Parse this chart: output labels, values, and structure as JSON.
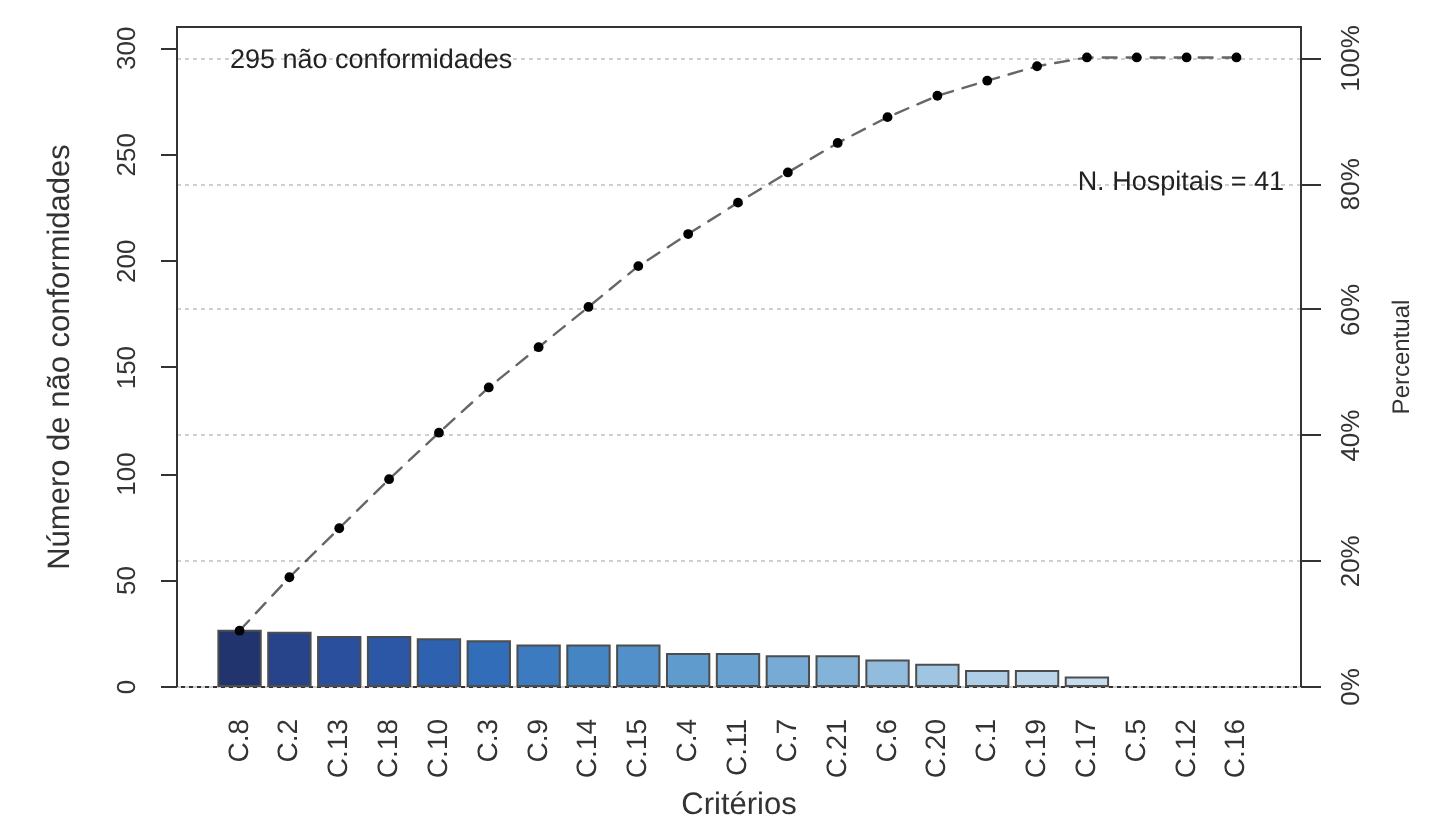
{
  "chart_data": {
    "type": "bar",
    "xlabel": "Critérios",
    "ylabel": "Número de não conformidades",
    "y2label": "Percentual",
    "categories": [
      "C.8",
      "C.2",
      "C.13",
      "C.18",
      "C.10",
      "C.3",
      "C.9",
      "C.14",
      "C.15",
      "C.4",
      "C.11",
      "C.7",
      "C.21",
      "C.6",
      "C.20",
      "C.1",
      "C.19",
      "C.17",
      "C.5",
      "C.12",
      "C.16"
    ],
    "series": [
      {
        "colors": [
          "#22346e",
          "#27438a",
          "#2a4f9c",
          "#2c57a6",
          "#2e62b0",
          "#316db8",
          "#3c7bbf",
          "#4585c4",
          "#5190c8",
          "#5f9bcd",
          "#6aa2d1",
          "#77abd5",
          "#84b3d9",
          "#92bcde",
          "#a0c5e2",
          "#aecde6",
          "#bad4ea",
          "#c7ddef",
          null,
          null,
          null
        ],
        "values": [
          26,
          25,
          23,
          23,
          22,
          21,
          19,
          19,
          19,
          15,
          15,
          14,
          14,
          12,
          10,
          7,
          7,
          4,
          0,
          0,
          0
        ]
      },
      {
        "type": "line",
        "axis": "y2",
        "color": "#000000",
        "values": [
          8.8,
          17.3,
          25.1,
          32.9,
          40.3,
          47.5,
          53.9,
          60.3,
          66.8,
          71.9,
          76.9,
          81.7,
          86.4,
          90.5,
          93.9,
          96.3,
          98.6,
          100,
          100,
          100,
          100
        ]
      }
    ],
    "ylim": [
      0,
      310
    ],
    "yticks": [
      0,
      50,
      100,
      150,
      200,
      250,
      300
    ],
    "y2lim": [
      0,
      105
    ],
    "y2ticks": [
      {
        "value": 0,
        "label": "0%"
      },
      {
        "value": 20,
        "label": "20%"
      },
      {
        "value": 40,
        "label": "40%"
      },
      {
        "value": 60,
        "label": "60%"
      },
      {
        "value": 80,
        "label": "80%"
      },
      {
        "value": 100,
        "label": "100%"
      }
    ],
    "grid": "y2",
    "marker": "circle",
    "line_style": "dashed",
    "annotations": [
      "295  não conformidades",
      "N. Hospitais =  41"
    ]
  }
}
